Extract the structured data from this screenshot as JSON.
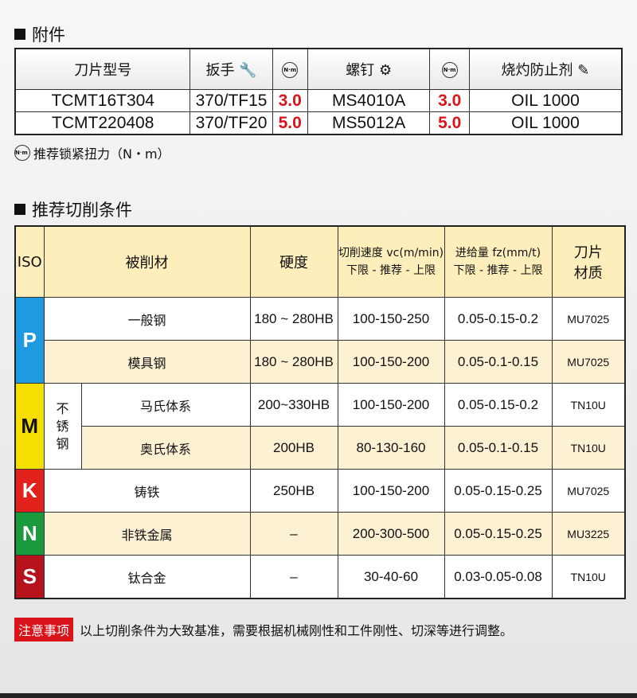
{
  "accessories": {
    "title": "附件",
    "headers": {
      "insert": "刀片型号",
      "wrench": "扳手",
      "screw": "螺钉",
      "anti_seize": "烧灼防止剂",
      "torque_icon": "N·m"
    },
    "rows": [
      {
        "insert": "TCMT16T304",
        "wrench": "370/TF15",
        "wrench_torque": "3.0",
        "screw": "MS4010A",
        "screw_torque": "3.0",
        "oil": "OIL 1000"
      },
      {
        "insert": "TCMT220408",
        "wrench": "370/TF20",
        "wrench_torque": "5.0",
        "screw": "MS5012A",
        "screw_torque": "5.0",
        "oil": "OIL 1000"
      }
    ],
    "torque_note": "推荐锁紧扭力（N・m）"
  },
  "cutting": {
    "title": "推荐切削条件",
    "headers": {
      "iso": "ISO",
      "material": "被削材",
      "hardness": "硬度",
      "speed": "切削速度 vc(m/min)",
      "feed": "进给量 fz(mm/t)",
      "range": "下限 - 推荐 - 上限",
      "grade": "刀片材质"
    },
    "stainless": "不锈钢",
    "iso_colors": {
      "P": "#1e9be0",
      "M": "#f5df00",
      "K": "#e2211c",
      "N": "#1a9a3c",
      "S": "#b5121b"
    },
    "groups": {
      "P": "P",
      "M": "M",
      "K": "K",
      "N": "N",
      "S": "S"
    },
    "rows": [
      {
        "material": "一般钢",
        "hardness": "180 ~ 280HB",
        "speed": "100-150-250",
        "feed": "0.05-0.15-0.2",
        "grade": "MU7025"
      },
      {
        "material": "模具钢",
        "hardness": "180 ~ 280HB",
        "speed": "100-150-200",
        "feed": "0.05-0.1-0.15",
        "grade": "MU7025"
      },
      {
        "material": "马氏体系",
        "hardness": "200~330HB",
        "speed": "100-150-200",
        "feed": "0.05-0.15-0.2",
        "grade": "TN10U"
      },
      {
        "material": "奥氏体系",
        "hardness": "200HB",
        "speed": "80-130-160",
        "feed": "0.05-0.1-0.15",
        "grade": "TN10U"
      },
      {
        "material": "铸铁",
        "hardness": "250HB",
        "speed": "100-150-200",
        "feed": "0.05-0.15-0.25",
        "grade": "MU7025"
      },
      {
        "material": "非铁金属",
        "hardness": "–",
        "speed": "200-300-500",
        "feed": "0.05-0.15-0.25",
        "grade": "MU3225"
      },
      {
        "material": "钛合金",
        "hardness": "–",
        "speed": "30-40-60",
        "feed": "0.03-0.05-0.08",
        "grade": "TN10U"
      }
    ]
  },
  "notice": {
    "label": "注意事项",
    "text": "以上切削条件为大致基准，需要根据机械刚性和工件刚性、切深等进行调整。"
  }
}
